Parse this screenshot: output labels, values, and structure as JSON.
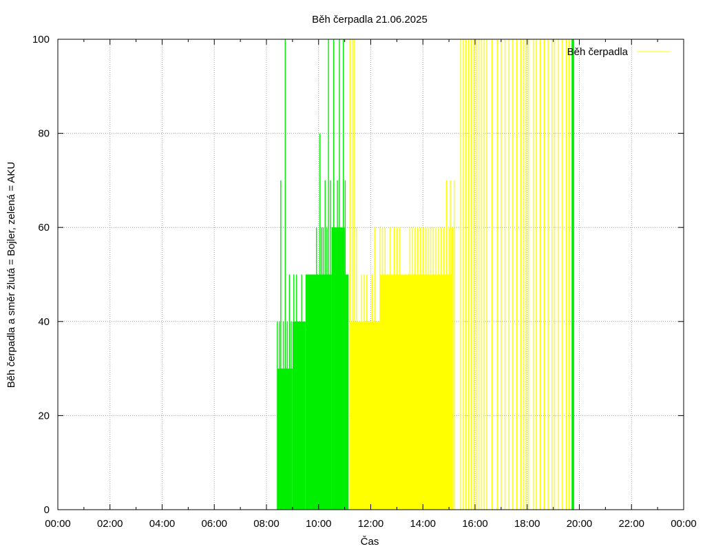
{
  "chart_data": {
    "type": "bar",
    "title": "Běh čerpadla 21.06.2025",
    "xlabel": "Čas",
    "ylabel": "Běh čerpadla a směr žlutá = Bojler, zelená = AKU",
    "xlim": [
      0,
      24
    ],
    "ylim": [
      0,
      100
    ],
    "grid": true,
    "legend_position": "top-right",
    "x_tick_labels": [
      "00:00",
      "02:00",
      "04:00",
      "06:00",
      "08:00",
      "10:00",
      "12:00",
      "14:00",
      "16:00",
      "18:00",
      "20:00",
      "22:00",
      "00:00"
    ],
    "y_tick_labels": [
      "0",
      "20",
      "40",
      "60",
      "80",
      "100"
    ],
    "y_ticks": [
      0,
      20,
      40,
      60,
      80,
      100
    ],
    "colors": {
      "bojler": "#ffff00",
      "aku": "#00ee00",
      "grid": "#a0a0a0"
    },
    "series": [
      {
        "name": "Běh čerpadla",
        "color": "#ffff00",
        "fill_segments": [
          {
            "from": 11.22,
            "to": 11.5,
            "value": 40
          },
          {
            "from": 11.5,
            "to": 12.35,
            "value": 40
          },
          {
            "from": 12.35,
            "to": 13.1,
            "value": 50
          },
          {
            "from": 13.1,
            "to": 15.1,
            "value": 50
          },
          {
            "from": 15.1,
            "to": 15.17,
            "value": 60
          }
        ],
        "spikes": [
          {
            "x": 11.2,
            "value": 100
          },
          {
            "x": 11.3,
            "value": 100
          },
          {
            "x": 11.38,
            "value": 100
          },
          {
            "x": 11.45,
            "value": 60
          },
          {
            "x": 11.55,
            "value": 30
          },
          {
            "x": 11.65,
            "value": 50
          },
          {
            "x": 11.75,
            "value": 50
          },
          {
            "x": 11.85,
            "value": 50
          },
          {
            "x": 11.95,
            "value": 40
          },
          {
            "x": 12.05,
            "value": 50
          },
          {
            "x": 12.15,
            "value": 60
          },
          {
            "x": 12.25,
            "value": 40
          },
          {
            "x": 12.35,
            "value": 60
          },
          {
            "x": 12.45,
            "value": 60
          },
          {
            "x": 12.55,
            "value": 60
          },
          {
            "x": 12.75,
            "value": 60
          },
          {
            "x": 12.9,
            "value": 60
          },
          {
            "x": 13.0,
            "value": 60
          },
          {
            "x": 13.1,
            "value": 60
          },
          {
            "x": 13.5,
            "value": 60
          },
          {
            "x": 13.6,
            "value": 60
          },
          {
            "x": 13.7,
            "value": 60
          },
          {
            "x": 13.8,
            "value": 60
          },
          {
            "x": 13.9,
            "value": 60
          },
          {
            "x": 14.0,
            "value": 60
          },
          {
            "x": 14.1,
            "value": 60
          },
          {
            "x": 14.2,
            "value": 60
          },
          {
            "x": 14.3,
            "value": 60
          },
          {
            "x": 14.4,
            "value": 60
          },
          {
            "x": 14.5,
            "value": 60
          },
          {
            "x": 14.6,
            "value": 60
          },
          {
            "x": 14.7,
            "value": 60
          },
          {
            "x": 14.8,
            "value": 60
          },
          {
            "x": 14.9,
            "value": 70
          },
          {
            "x": 15.0,
            "value": 60
          },
          {
            "x": 15.05,
            "value": 70
          },
          {
            "x": 15.12,
            "value": 60
          },
          {
            "x": 15.2,
            "value": 70
          },
          {
            "x": 15.45,
            "value": 100
          },
          {
            "x": 15.55,
            "value": 100
          },
          {
            "x": 15.65,
            "value": 100
          },
          {
            "x": 15.75,
            "value": 100
          },
          {
            "x": 15.85,
            "value": 100
          },
          {
            "x": 15.95,
            "value": 100
          },
          {
            "x": 16.05,
            "value": 100
          },
          {
            "x": 16.15,
            "value": 100
          },
          {
            "x": 16.25,
            "value": 100
          },
          {
            "x": 16.35,
            "value": 100
          },
          {
            "x": 16.45,
            "value": 100
          },
          {
            "x": 16.65,
            "value": 100
          },
          {
            "x": 16.85,
            "value": 100
          },
          {
            "x": 17.0,
            "value": 100
          },
          {
            "x": 17.15,
            "value": 100
          },
          {
            "x": 17.3,
            "value": 100
          },
          {
            "x": 17.45,
            "value": 100
          },
          {
            "x": 17.6,
            "value": 100
          },
          {
            "x": 17.75,
            "value": 100
          },
          {
            "x": 17.85,
            "value": 100
          },
          {
            "x": 17.95,
            "value": 100
          },
          {
            "x": 18.05,
            "value": 100
          },
          {
            "x": 18.25,
            "value": 100
          },
          {
            "x": 18.35,
            "value": 100
          },
          {
            "x": 18.5,
            "value": 100
          },
          {
            "x": 18.65,
            "value": 100
          },
          {
            "x": 18.8,
            "value": 100
          },
          {
            "x": 18.95,
            "value": 100
          },
          {
            "x": 19.05,
            "value": 100
          },
          {
            "x": 19.2,
            "value": 100
          },
          {
            "x": 19.35,
            "value": 100
          },
          {
            "x": 19.5,
            "value": 100
          },
          {
            "x": 19.6,
            "value": 100
          }
        ]
      },
      {
        "color": "#00ee00",
        "fill_segments": [
          {
            "from": 8.42,
            "to": 9.0,
            "value": 30
          },
          {
            "from": 9.0,
            "to": 9.5,
            "value": 40
          },
          {
            "from": 9.5,
            "to": 10.5,
            "value": 50
          },
          {
            "from": 10.5,
            "to": 11.0,
            "value": 60
          },
          {
            "from": 11.0,
            "to": 11.15,
            "value": 50
          }
        ],
        "spikes": [
          {
            "x": 8.42,
            "value": 40
          },
          {
            "x": 8.5,
            "value": 40
          },
          {
            "x": 8.55,
            "value": 70
          },
          {
            "x": 8.65,
            "value": 40
          },
          {
            "x": 8.72,
            "value": 100
          },
          {
            "x": 8.8,
            "value": 40
          },
          {
            "x": 8.88,
            "value": 50
          },
          {
            "x": 8.95,
            "value": 40
          },
          {
            "x": 9.05,
            "value": 50
          },
          {
            "x": 9.15,
            "value": 50
          },
          {
            "x": 9.25,
            "value": 40
          },
          {
            "x": 9.35,
            "value": 50
          },
          {
            "x": 9.45,
            "value": 40
          },
          {
            "x": 9.55,
            "value": 50
          },
          {
            "x": 9.62,
            "value": 50
          },
          {
            "x": 9.7,
            "value": 50
          },
          {
            "x": 9.78,
            "value": 50
          },
          {
            "x": 9.85,
            "value": 50
          },
          {
            "x": 9.92,
            "value": 60
          },
          {
            "x": 10.0,
            "value": 50
          },
          {
            "x": 10.05,
            "value": 80
          },
          {
            "x": 10.12,
            "value": 60
          },
          {
            "x": 10.18,
            "value": 60
          },
          {
            "x": 10.25,
            "value": 70
          },
          {
            "x": 10.32,
            "value": 60
          },
          {
            "x": 10.38,
            "value": 100
          },
          {
            "x": 10.45,
            "value": 70
          },
          {
            "x": 10.52,
            "value": 60
          },
          {
            "x": 10.58,
            "value": 100
          },
          {
            "x": 10.65,
            "value": 60
          },
          {
            "x": 10.72,
            "value": 70
          },
          {
            "x": 10.8,
            "value": 100
          },
          {
            "x": 10.88,
            "value": 60
          },
          {
            "x": 10.95,
            "value": 100
          },
          {
            "x": 11.02,
            "value": 70
          },
          {
            "x": 11.1,
            "value": 50
          },
          {
            "x": 19.72,
            "value": 100
          },
          {
            "x": 19.74,
            "value": 100
          },
          {
            "x": 19.76,
            "value": 100
          },
          {
            "x": 19.78,
            "value": 100
          }
        ]
      }
    ]
  }
}
